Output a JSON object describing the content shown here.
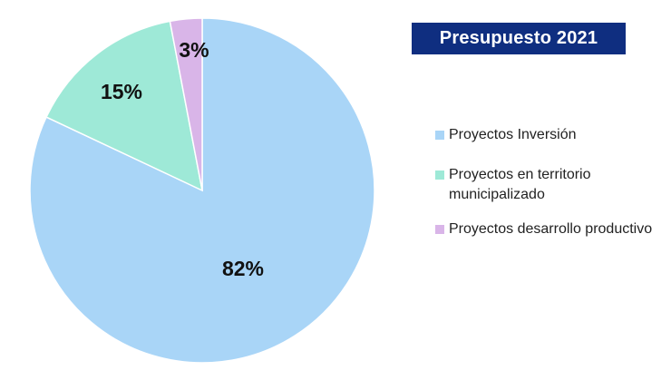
{
  "chart_data": {
    "type": "pie",
    "title": "Presupuesto 2021",
    "categories": [
      "Proyectos Inversión",
      "Proyectos en territorio municipalizado",
      "Proyectos desarrollo productivo"
    ],
    "values": [
      82,
      15,
      3
    ],
    "value_labels": [
      "82%",
      "15%",
      "3%"
    ],
    "colors": [
      "#a9d5f7",
      "#9ee9d7",
      "#d9b5e8"
    ],
    "legend_position": "right"
  },
  "legend": {
    "items": [
      {
        "label": "Proyectos Inversión"
      },
      {
        "label": "Proyectos en territorio municipalizado"
      },
      {
        "label": "Proyectos desarrollo productivo"
      }
    ]
  }
}
